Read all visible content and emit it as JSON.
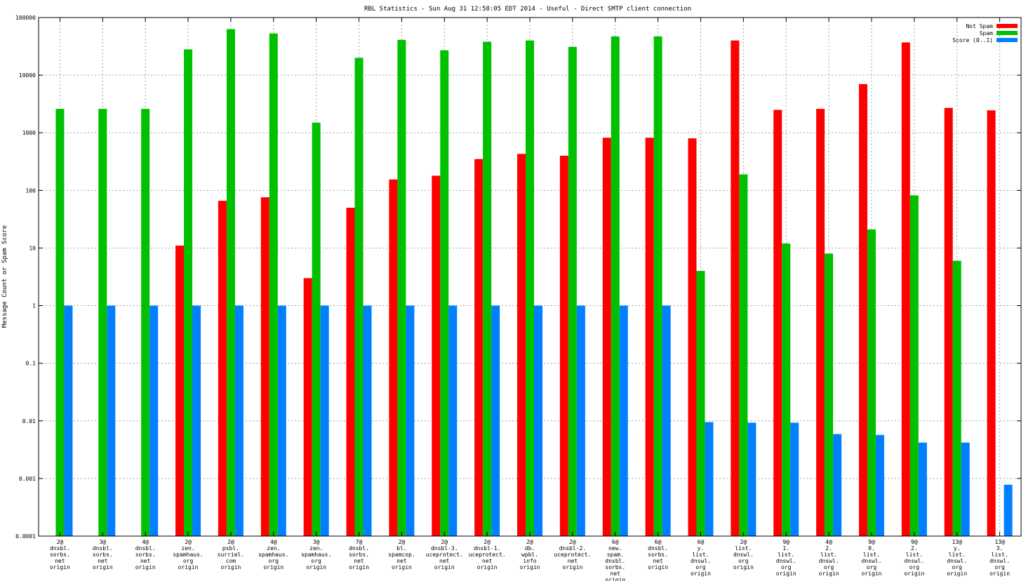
{
  "chart_data": {
    "type": "bar",
    "title": "RBL Statistics - Sun Aug 31 12:58:05 EDT 2014 - Useful - Direct SMTP client connection",
    "xlabel": "",
    "ylabel": "Message Count or Spam Score",
    "yscale": "log",
    "ylim": [
      0.0001,
      100000
    ],
    "yticks": [
      "0.0001",
      "0.001",
      "0.01",
      "0.1",
      "1",
      "10",
      "100",
      "1000",
      "10000",
      "100000"
    ],
    "grid": true,
    "legend_position": "top-right",
    "categories": [
      [
        "2@",
        "dnsbl.",
        "sorbs.",
        "net",
        "origin"
      ],
      [
        "3@",
        "dnsbl.",
        "sorbs.",
        "net",
        "origin"
      ],
      [
        "4@",
        "dnsbl.",
        "sorbs.",
        "net",
        "origin"
      ],
      [
        "2@",
        "zen.",
        "spamhaus.",
        "org",
        "origin"
      ],
      [
        "2@",
        "psbl.",
        "surriel.",
        "com",
        "origin"
      ],
      [
        "4@",
        "zen.",
        "spamhaus.",
        "org",
        "origin"
      ],
      [
        "3@",
        "zen.",
        "spamhaus.",
        "org",
        "origin"
      ],
      [
        "7@",
        "dnsbl.",
        "sorbs.",
        "net",
        "origin"
      ],
      [
        "2@",
        "bl.",
        "spamcop.",
        "net",
        "origin"
      ],
      [
        "2@",
        "dnsbl-3.",
        "uceprotect.",
        "net",
        "origin"
      ],
      [
        "2@",
        "dnsbl-1.",
        "uceprotect.",
        "net",
        "origin"
      ],
      [
        "2@",
        "db.",
        "wpbl.",
        "info",
        "origin"
      ],
      [
        "2@",
        "dnsbl-2.",
        "uceprotect.",
        "net",
        "origin"
      ],
      [
        "6@",
        "new.",
        "spam.",
        "dnsbl.",
        "sorbs.",
        "net",
        "origin"
      ],
      [
        "6@",
        "dnsbl.",
        "sorbs.",
        "net",
        "origin"
      ],
      [
        "6@",
        "y.",
        "list.",
        "dnswl.",
        "org",
        "origin"
      ],
      [
        "2@",
        "list.",
        "dnswl.",
        "org",
        "origin"
      ],
      [
        "9@",
        "1.",
        "list.",
        "dnswl.",
        "org",
        "origin"
      ],
      [
        "4@",
        "2.",
        "list.",
        "dnswl.",
        "org",
        "origin"
      ],
      [
        "9@",
        "0.",
        "list.",
        "dnswl.",
        "org",
        "origin"
      ],
      [
        "9@",
        "2.",
        "list.",
        "dnswl.",
        "org",
        "origin"
      ],
      [
        "13@",
        "y.",
        "list.",
        "dnswl.",
        "org",
        "origin"
      ],
      [
        "13@",
        "3.",
        "list.",
        "dnswl.",
        "org",
        "origin"
      ]
    ],
    "series": [
      {
        "name": "Not Spam",
        "color": "#ff0000",
        "values": [
          null,
          null,
          null,
          11,
          66,
          76,
          3,
          50,
          155,
          180,
          350,
          430,
          400,
          820,
          820,
          800,
          40000,
          2500,
          2600,
          7000,
          37000,
          2700,
          2450
        ]
      },
      {
        "name": "Spam",
        "color": "#00c000",
        "values": [
          2600,
          2600,
          2600,
          28000,
          63000,
          53000,
          1500,
          20000,
          41000,
          27000,
          38000,
          40000,
          31000,
          47000,
          47000,
          4,
          190,
          12,
          8,
          21,
          82,
          6,
          null
        ]
      },
      {
        "name": "Score (0..1)",
        "color": "#0080ff",
        "values": [
          1,
          1,
          1,
          1,
          1,
          1,
          1,
          1,
          1,
          1,
          1,
          1,
          1,
          1,
          1,
          0.0095,
          0.0093,
          0.0093,
          0.0059,
          0.0057,
          0.0042,
          0.0042,
          0.00078
        ]
      }
    ]
  }
}
